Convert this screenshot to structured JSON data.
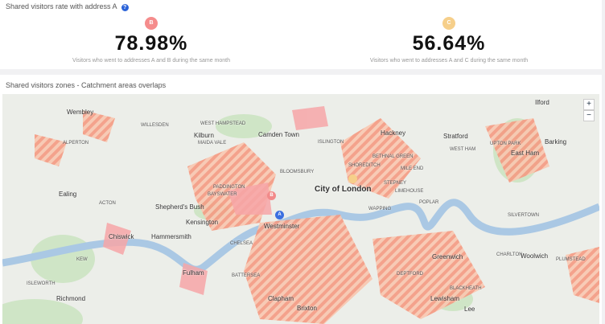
{
  "header": {
    "title": "Shared visitors rate with address A",
    "help": "?"
  },
  "stats": [
    {
      "badge": "B",
      "value": "78.98%",
      "caption": "Visitors who went to addresses A and B during the same month"
    },
    {
      "badge": "C",
      "value": "56.64%",
      "caption": "Visitors who went to addresses A and C during the same month"
    }
  ],
  "map_section": {
    "title": "Shared visitors zones - Catchment areas overlaps",
    "controls": [
      "+",
      "−"
    ],
    "markers": [
      "A",
      "B"
    ],
    "labels": [
      "Wembley",
      "WILLESDEN",
      "ALPERTON",
      "Kilburn",
      "WEST HAMPSTEAD",
      "Camden Town",
      "ISLINGTON",
      "Hackney",
      "Stratford",
      "Ilford",
      "Barking",
      "East Ham",
      "WEST HAM",
      "UPTON PARK",
      "MAIDA VALE",
      "PADDINGTON",
      "BLOOMSBURY",
      "City of London",
      "SHOREDITCH",
      "BETHNAL GREEN",
      "MILE END",
      "Ealing",
      "ACTON",
      "Shepherd's Bush",
      "Kensington",
      "Hammersmith",
      "Chiswick",
      "CHELSEA",
      "Westminster",
      "STEPNEY",
      "LIMEHOUSE",
      "WAPPING",
      "POPLAR",
      "SILVERTOWN",
      "Greenwich",
      "CHARLTON",
      "Woolwich",
      "PLUMSTEAD",
      "Fulham",
      "BATTERSEA",
      "KEW",
      "ISLEWORTH",
      "Richmond",
      "Clapham",
      "Brixton",
      "Lewisham",
      "BLACKHEATH",
      "Lee",
      "DEPTFORD",
      "BAYSWATER"
    ]
  }
}
